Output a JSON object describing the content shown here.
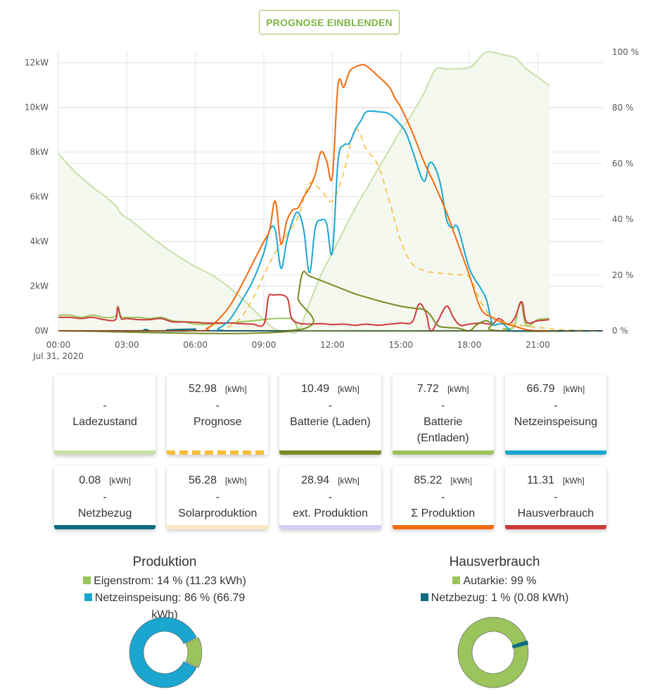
{
  "toolbar": {
    "forecast_button_label": "PROGNOSE EINBLENDEN"
  },
  "colors": {
    "soc": "#c9dfa8",
    "soc_fill": "#f4f8ef",
    "forecast": "#f5bd3a",
    "battery_charge": "#7a8a24",
    "battery_discharge": "#9bc45c",
    "grid_feed": "#1aa6cf",
    "grid_draw": "#0e6b80",
    "solar": "#fbe9bf",
    "ext_production": "#d7cbf7",
    "total_production": "#f26b0f",
    "house": "#cf3a3a"
  },
  "chart_data": {
    "type": "line",
    "title": "",
    "xlabel": "",
    "ylabel": "kW",
    "y2label": "%",
    "date_label": "Jul 31, 2020",
    "x_ticks": [
      "00:00",
      "03:00",
      "06:00",
      "09:00",
      "12:00",
      "15:00",
      "18:00",
      "21:00"
    ],
    "y_ticks": [
      "0W",
      "2kW",
      "4kW",
      "6kW",
      "8kW",
      "10kW",
      "12kW"
    ],
    "y2_ticks": [
      "0 %",
      "20 %",
      "40 %",
      "60 %",
      "80 %",
      "100 %"
    ],
    "xlim_hours": [
      0,
      23.85
    ],
    "ylim_kw": [
      0,
      12.6
    ],
    "y2lim_pct": [
      0,
      100
    ],
    "grid": true,
    "series": [
      {
        "name": "Ladezustand",
        "axis": "right",
        "unit": "%",
        "style": "area",
        "color_key": "soc",
        "x": [
          0,
          0.5,
          1,
          1.5,
          2,
          2.5,
          2.75,
          3,
          3.5,
          4,
          4.5,
          5,
          5.5,
          6,
          6.5,
          7,
          7.5,
          8,
          8.5,
          9,
          9.5,
          10,
          10.5,
          11,
          11.5,
          12,
          12.5,
          13,
          13.5,
          14,
          14.5,
          15,
          15.5,
          16,
          16.5,
          17,
          17.5,
          18,
          18.25,
          18.5,
          18.75,
          19,
          19.5,
          20,
          20.25,
          20.5,
          21,
          21.5
        ],
        "y": [
          63.5,
          59,
          55,
          51.5,
          48.5,
          45,
          42,
          40.5,
          37.5,
          34,
          31,
          28,
          25.5,
          23,
          21,
          18.5,
          15.5,
          12,
          8,
          4,
          0.5,
          0,
          0,
          10,
          20,
          28,
          36,
          44,
          51,
          58,
          65,
          72,
          78,
          85,
          93.5,
          94,
          94,
          94.5,
          96,
          98.5,
          100,
          100,
          99,
          98,
          96,
          94,
          91,
          88
        ]
      },
      {
        "name": "Prognose",
        "axis": "left",
        "unit": "kW",
        "style": "dashed",
        "color_key": "forecast",
        "x": [
          7,
          7.5,
          8,
          8.5,
          9,
          9.5,
          10,
          10.5,
          11,
          11.5,
          12,
          12.5,
          13,
          13.5,
          14,
          14.5,
          15,
          15.5,
          16,
          16.5,
          17,
          17.5,
          18,
          18.5,
          19,
          19.5,
          20,
          20.5,
          21,
          21.5,
          22,
          23.85
        ],
        "y": [
          0.0,
          0.2,
          0.6,
          1.4,
          2.5,
          3.5,
          4.3,
          5.1,
          6.6,
          6.3,
          5.8,
          7.1,
          9.0,
          8.1,
          7.4,
          5.8,
          4.0,
          3.0,
          2.7,
          2.6,
          2.55,
          2.5,
          2.4,
          1.3,
          0.6,
          0.4,
          0.3,
          0.2,
          0.15,
          0.1,
          0.05,
          0.0
        ]
      },
      {
        "name": "Batterie (Laden)",
        "axis": "left",
        "unit": "kW",
        "style": "line",
        "color_key": "battery_charge",
        "x": [
          0,
          10.3,
          10.5,
          10.7,
          11,
          11.5,
          12,
          12.5,
          13,
          13.5,
          14,
          14.5,
          15,
          15.5,
          16,
          16.3,
          16.6,
          17,
          17.5,
          18,
          18.3,
          18.7,
          19,
          19.3,
          23.85
        ],
        "y": [
          0,
          0,
          1.5,
          2.6,
          2.45,
          2.25,
          2.05,
          1.85,
          1.65,
          1.5,
          1.35,
          1.22,
          1.1,
          1.02,
          0.95,
          0.7,
          0.25,
          0.15,
          0.12,
          0.0,
          0.25,
          0.45,
          0.3,
          0.0,
          0
        ]
      },
      {
        "name": "Batterie (Entladen)",
        "axis": "left",
        "unit": "kW",
        "style": "line",
        "color_key": "battery_discharge",
        "x": [
          0,
          0.5,
          1,
          1.5,
          2,
          2.5,
          2.6,
          2.75,
          3,
          3.5,
          4,
          4.5,
          5,
          5.5,
          6,
          6.5,
          7,
          7.5,
          8,
          8.5,
          9,
          9.5,
          10,
          10.3,
          10.5,
          10.8,
          19,
          19.5,
          19.8,
          20,
          20.25,
          20.5,
          21,
          21.5
        ],
        "y": [
          0.7,
          0.7,
          0.6,
          0.7,
          0.6,
          0.65,
          1.1,
          0.65,
          0.6,
          0.6,
          0.55,
          0.6,
          0.45,
          0.4,
          0.3,
          0.3,
          0.32,
          0.35,
          0.4,
          0.45,
          0.5,
          0.55,
          0.55,
          0.5,
          0.1,
          0,
          0,
          0.1,
          0.1,
          0.3,
          1.3,
          0.25,
          0.5,
          0.55
        ]
      },
      {
        "name": "Netzeinspeisung",
        "axis": "left",
        "unit": "kW",
        "style": "line",
        "color_key": "grid_feed",
        "x": [
          0,
          6.5,
          7,
          7.5,
          8,
          8.5,
          9,
          9.25,
          9.5,
          9.75,
          10,
          10.25,
          10.5,
          10.75,
          11,
          11.25,
          11.5,
          11.75,
          12,
          12.25,
          12.5,
          12.75,
          13,
          13.25,
          13.5,
          14,
          14.5,
          15,
          15.25,
          15.5,
          16,
          16.25,
          16.5,
          16.75,
          17,
          17.25,
          17.5,
          18,
          18.5,
          18.75,
          19,
          19.25,
          19.5,
          19.75,
          20,
          23.85
        ],
        "y": [
          0,
          0,
          0.1,
          0.5,
          1.3,
          2.2,
          3.5,
          4.5,
          4.5,
          2.8,
          4.0,
          4.9,
          5.3,
          4.5,
          2.6,
          4.6,
          4.95,
          4.8,
          3.5,
          7.6,
          8.3,
          8.4,
          9.0,
          9.4,
          9.8,
          9.8,
          9.7,
          9.2,
          8.8,
          8.1,
          6.7,
          7.5,
          7.3,
          6.5,
          5.0,
          4.6,
          4.6,
          2.8,
          1.9,
          1.4,
          0.35,
          0.3,
          0.3,
          0.05,
          0.0,
          0
        ]
      },
      {
        "name": "Netzbezug",
        "axis": "left",
        "unit": "kW",
        "style": "line",
        "color_key": "grid_draw",
        "x": [
          0,
          3.6,
          3.8,
          3.9,
          5.8,
          6,
          6.2,
          23.85
        ],
        "y": [
          0,
          0,
          0.06,
          0,
          0,
          0.08,
          0,
          0
        ]
      },
      {
        "name": "Σ Produktion",
        "axis": "left",
        "unit": "kW",
        "style": "line",
        "color_key": "total_production",
        "x": [
          0,
          6,
          6.5,
          7,
          7.5,
          8,
          8.5,
          9,
          9.25,
          9.5,
          9.75,
          10,
          10.25,
          10.5,
          10.75,
          11,
          11.25,
          11.5,
          11.75,
          12,
          12.25,
          12.5,
          12.75,
          13,
          13.25,
          13.5,
          14,
          14.5,
          14.75,
          15,
          15.5,
          16,
          16.5,
          17,
          17.5,
          18,
          18.5,
          19,
          19.5,
          20,
          20.5,
          21,
          21.5
        ],
        "y": [
          0,
          0,
          0.1,
          0.5,
          1.1,
          2.0,
          3.0,
          4.0,
          4.5,
          5.8,
          3.9,
          4.9,
          5.4,
          5.5,
          6.0,
          6.4,
          7.0,
          8.0,
          7.6,
          6.9,
          11.0,
          10.9,
          11.6,
          11.8,
          11.9,
          11.85,
          11.4,
          10.9,
          10.4,
          10.0,
          8.9,
          7.6,
          6.5,
          5.3,
          3.9,
          2.5,
          1.0,
          0.6,
          0.35,
          0.2,
          0.05,
          0.0,
          0.0
        ]
      },
      {
        "name": "Hausverbrauch",
        "axis": "left",
        "unit": "kW",
        "style": "line",
        "color_key": "house",
        "x": [
          0,
          0.5,
          1,
          1.5,
          2,
          2.5,
          2.6,
          2.75,
          3,
          3.5,
          4,
          4.5,
          5,
          5.5,
          6,
          6.5,
          7,
          7.5,
          8,
          8.5,
          9,
          9.2,
          9.4,
          10,
          10.2,
          10.5,
          11,
          11.5,
          12,
          12.5,
          13,
          13.5,
          14,
          14.5,
          15,
          15.5,
          15.8,
          16.1,
          16.3,
          16.6,
          17,
          17.3,
          17.6,
          18,
          18.5,
          19,
          19.3,
          19.7,
          20,
          20.3,
          20.5,
          21,
          21.5
        ],
        "y": [
          0.6,
          0.6,
          0.55,
          0.6,
          0.5,
          0.5,
          1.05,
          0.55,
          0.55,
          0.5,
          0.5,
          0.55,
          0.4,
          0.4,
          0.38,
          0.35,
          0.35,
          0.35,
          0.32,
          0.3,
          0.3,
          1.5,
          1.6,
          1.5,
          0.6,
          0.35,
          0.3,
          0.32,
          0.28,
          0.3,
          0.25,
          0.3,
          0.25,
          0.3,
          0.35,
          0.4,
          1.2,
          0.8,
          0.0,
          0.4,
          1.1,
          0.6,
          0.25,
          0.3,
          0.35,
          0.3,
          0.55,
          0.3,
          0.6,
          1.3,
          0.4,
          0.45,
          0.5
        ]
      }
    ]
  },
  "cards": [
    {
      "value": "",
      "unit": "",
      "dash": "-",
      "label": "Ladezustand",
      "color_key": "soc",
      "pattern": "solid"
    },
    {
      "value": "52.98",
      "unit": "[kWh]",
      "dash": "-",
      "label": "Prognose",
      "color_key": "forecast",
      "pattern": "dashed"
    },
    {
      "value": "10.49",
      "unit": "[kWh]",
      "dash": "-",
      "label": "Batterie (Laden)",
      "color_key": "battery_charge",
      "pattern": "solid"
    },
    {
      "value": "7.72",
      "unit": "[kWh]",
      "dash": "-",
      "label": "Batterie (Entladen)",
      "color_key": "battery_discharge",
      "pattern": "solid"
    },
    {
      "value": "66.79",
      "unit": "[kWh]",
      "dash": "-",
      "label": "Netzeinspeisung",
      "color_key": "grid_feed",
      "pattern": "solid"
    },
    {
      "value": "0.08",
      "unit": "[kWh]",
      "dash": "-",
      "label": "Netzbezug",
      "color_key": "grid_draw",
      "pattern": "solid"
    },
    {
      "value": "56.28",
      "unit": "[kWh]",
      "dash": "-",
      "label": "Solarproduktion",
      "color_key": "solar",
      "pattern": "solid"
    },
    {
      "value": "28.94",
      "unit": "[kWh]",
      "dash": "-",
      "label": "ext. Produktion",
      "color_key": "ext_production",
      "pattern": "solid"
    },
    {
      "value": "85.22",
      "unit": "[kWh]",
      "dash": "-",
      "label": "Σ Produktion",
      "color_key": "total_production",
      "pattern": "solid"
    },
    {
      "value": "11.31",
      "unit": "[kWh]",
      "dash": "-",
      "label": "Hausverbrauch",
      "color_key": "house",
      "pattern": "solid"
    }
  ],
  "donuts": {
    "production": {
      "title": "Produktion",
      "legend": [
        {
          "text": "Eigenstrom: 14 % (11.23 kWh)",
          "color_key": "battery_discharge"
        },
        {
          "text": "Netzeinspeisung: 86 % (66.79 kWh)",
          "color_key": "grid_feed"
        }
      ],
      "slices": [
        {
          "name": "Eigenstrom",
          "percent": 14,
          "color_key": "battery_discharge"
        },
        {
          "name": "Netzeinspeisung",
          "percent": 86,
          "color_key": "grid_feed"
        }
      ]
    },
    "house": {
      "title": "Hausverbrauch",
      "legend": [
        {
          "text": "Autarkie: 99 %",
          "color_key": "battery_discharge"
        },
        {
          "text": "Netzbezug: 1 % (0.08 kWh)",
          "color_key": "grid_draw"
        }
      ],
      "slices": [
        {
          "name": "Autarkie",
          "percent": 99,
          "color_key": "battery_discharge"
        },
        {
          "name": "Netzbezug",
          "percent": 1,
          "color_key": "grid_draw"
        }
      ]
    }
  }
}
